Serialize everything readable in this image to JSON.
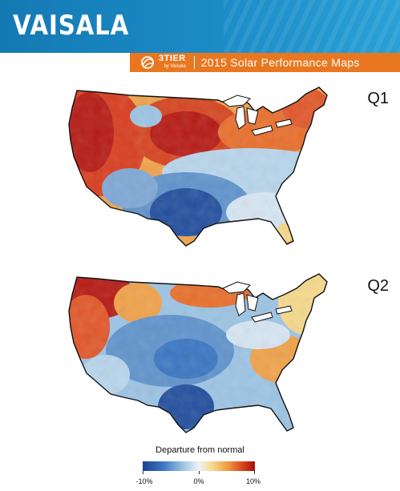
{
  "header": {
    "logo_text": "VAISALA",
    "header_color": "#1b8cc7"
  },
  "banner": {
    "brand": "3TIER",
    "brand_sub": "by Vaisala",
    "title": "2015 Solar Performance Maps",
    "color": "#e9771f"
  },
  "maps": [
    {
      "label": "Q1",
      "dominant": "above normal in west and north, below normal in south and southeast"
    },
    {
      "label": "Q2",
      "dominant": "above normal in northwest and northeast, below normal across central and southern states"
    }
  ],
  "legend": {
    "title": "Departure from normal",
    "ticks": [
      "-10%",
      "0%",
      "10%"
    ],
    "colors": [
      "#1d3f8f",
      "#9cc4e4",
      "#eef3f8",
      "#f6d98c",
      "#f09a40",
      "#a30f0f"
    ]
  }
}
